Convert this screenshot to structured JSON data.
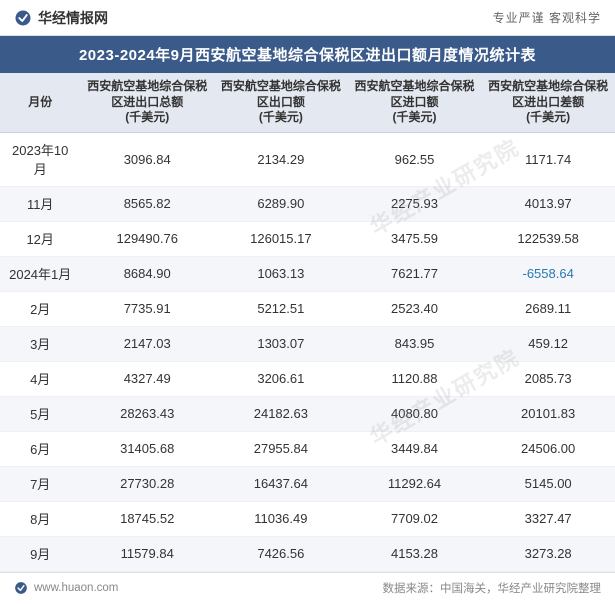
{
  "header": {
    "brand": "华经情报网",
    "slogan": "专业严谨  客观科学"
  },
  "title": "2023-2024年9月西安航空基地综合保税区进出口额月度情况统计表",
  "table": {
    "columns": [
      "月份",
      "西安航空基地综合保税区进出口总额\n(千美元)",
      "西安航空基地综合保税区出口额\n(千美元)",
      "西安航空基地综合保税区进口额\n(千美元)",
      "西安航空基地综合保税区进出口差额\n(千美元)"
    ],
    "rows": [
      {
        "month": "2023年10月",
        "total": "3096.84",
        "export": "2134.29",
        "import": "962.55",
        "diff": "1171.74",
        "neg": false
      },
      {
        "month": "11月",
        "total": "8565.82",
        "export": "6289.90",
        "import": "2275.93",
        "diff": "4013.97",
        "neg": false
      },
      {
        "month": "12月",
        "total": "129490.76",
        "export": "126015.17",
        "import": "3475.59",
        "diff": "122539.58",
        "neg": false
      },
      {
        "month": "2024年1月",
        "total": "8684.90",
        "export": "1063.13",
        "import": "7621.77",
        "diff": "-6558.64",
        "neg": true
      },
      {
        "month": "2月",
        "total": "7735.91",
        "export": "5212.51",
        "import": "2523.40",
        "diff": "2689.11",
        "neg": false
      },
      {
        "month": "3月",
        "total": "2147.03",
        "export": "1303.07",
        "import": "843.95",
        "diff": "459.12",
        "neg": false
      },
      {
        "month": "4月",
        "total": "4327.49",
        "export": "3206.61",
        "import": "1120.88",
        "diff": "2085.73",
        "neg": false
      },
      {
        "month": "5月",
        "total": "28263.43",
        "export": "24182.63",
        "import": "4080.80",
        "diff": "20101.83",
        "neg": false
      },
      {
        "month": "6月",
        "total": "31405.68",
        "export": "27955.84",
        "import": "3449.84",
        "diff": "24506.00",
        "neg": false
      },
      {
        "month": "7月",
        "total": "27730.28",
        "export": "16437.64",
        "import": "11292.64",
        "diff": "5145.00",
        "neg": false
      },
      {
        "month": "8月",
        "total": "18745.52",
        "export": "11036.49",
        "import": "7709.02",
        "diff": "3327.47",
        "neg": false
      },
      {
        "month": "9月",
        "total": "11579.84",
        "export": "7426.56",
        "import": "4153.28",
        "diff": "3273.28",
        "neg": false
      }
    ]
  },
  "footer": {
    "site": "www.huaon.com",
    "source": "数据来源：中国海关，华经产业研究院整理"
  },
  "watermark": "华经产业研究院",
  "colors": {
    "title_band_bg": "#3a5a8a",
    "header_row_bg": "#e4e9f1",
    "row_alt_bg": "#f4f6fa",
    "negative_text": "#2a7ab0",
    "text": "#333333",
    "muted": "#888888"
  }
}
